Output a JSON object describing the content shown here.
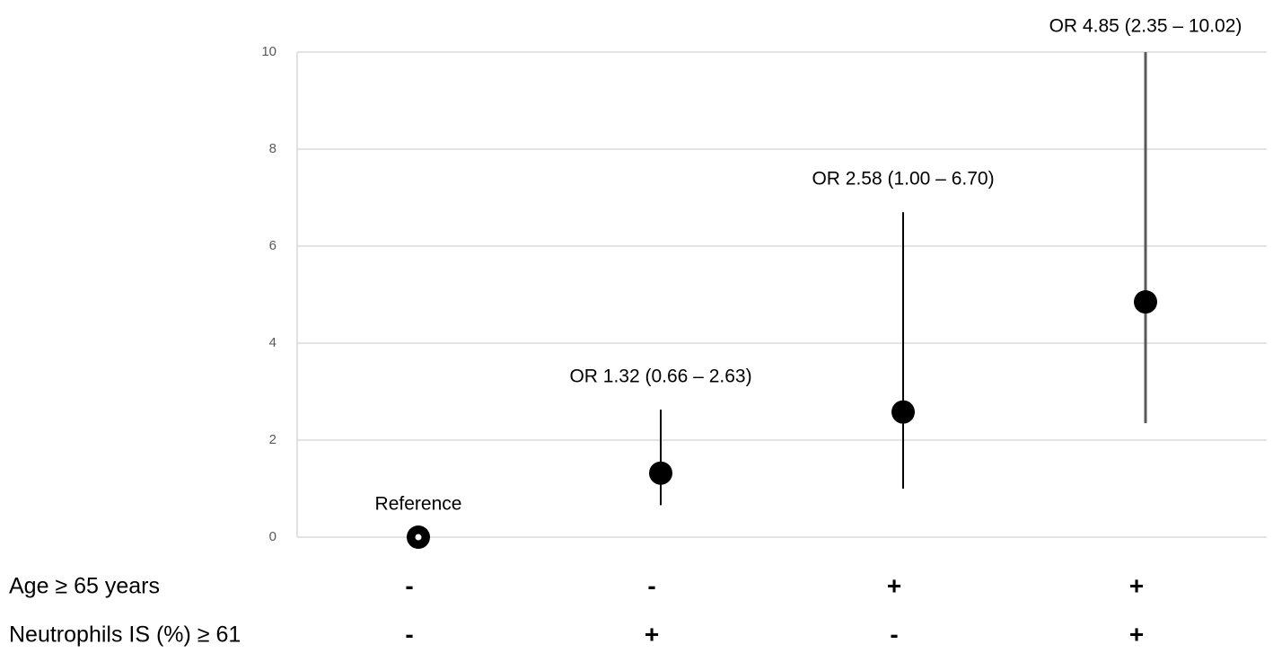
{
  "chart_data": {
    "type": "errorpoint",
    "categories": [
      null,
      null,
      null,
      null
    ],
    "values": [
      0,
      1.32,
      2.58,
      4.85
    ],
    "lower": [
      null,
      0.66,
      1.0,
      2.35
    ],
    "upper": [
      null,
      2.63,
      6.7,
      10.02
    ],
    "annotations": [
      "Reference",
      "OR 1.32 (0.66 – 2.63)",
      "OR 2.58 (1.00 – 6.70)",
      "OR 4.85 (2.35 – 10.02)"
    ],
    "color": "#000000",
    "ylim": [
      0,
      10
    ],
    "yticks": [
      0,
      2,
      4,
      6,
      8,
      10
    ],
    "grid": true,
    "factor_rows": [
      {
        "label": "Age ≥ 65 years",
        "marks": [
          "-",
          "-",
          "+",
          "+"
        ]
      },
      {
        "label": "Neutrophils IS (%) ≥ 61",
        "marks": [
          "-",
          "+",
          "-",
          "+"
        ]
      }
    ]
  }
}
